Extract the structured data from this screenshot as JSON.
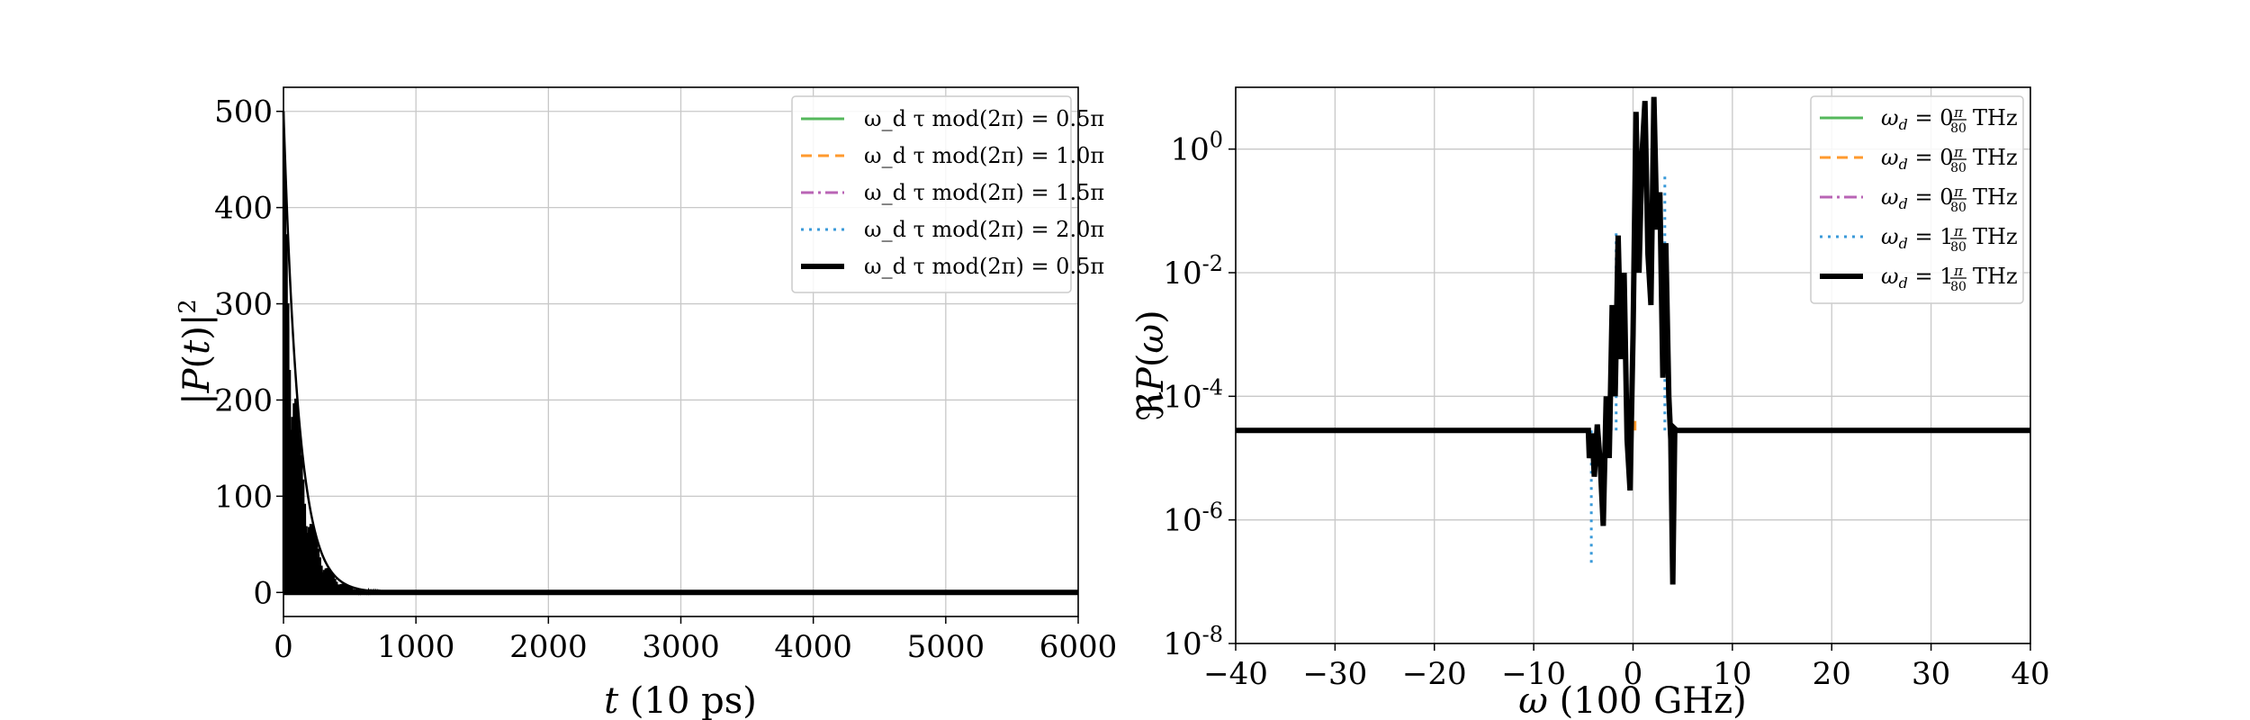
{
  "chart_data": [
    {
      "type": "line",
      "xlabel": "t (10 ps)",
      "ylabel": "|P(t)|²",
      "xlim": [
        0,
        6000
      ],
      "ylim": [
        -25,
        525
      ],
      "xticks": [
        "0",
        "1000",
        "2000",
        "3000",
        "4000",
        "5000",
        "6000"
      ],
      "xtick_values": [
        0,
        1000,
        2000,
        3000,
        4000,
        5000,
        6000
      ],
      "yticks": [
        "0",
        "100",
        "200",
        "300",
        "400",
        "500"
      ],
      "ytick_values": [
        0,
        100,
        200,
        300,
        400,
        500
      ],
      "grid": true,
      "legend_position": "top-right",
      "envelope": {
        "peak": 500,
        "decay_constant": 115,
        "oscillating": true,
        "x_end": 1100
      },
      "series": [
        {
          "name": "ω_d τ mod(2π) = 0.5π",
          "color": "#55b85c",
          "style": "solid",
          "width": 3
        },
        {
          "name": "ω_d τ mod(2π) = 1.0π",
          "color": "#ff9a2e",
          "style": "dashed",
          "width": 3
        },
        {
          "name": "ω_d τ mod(2π) = 1.5π",
          "color": "#b964b5",
          "style": "dashdot",
          "width": 3
        },
        {
          "name": "ω_d τ mod(2π) = 2.0π",
          "color": "#3a9ad9",
          "style": "dotted",
          "width": 3
        },
        {
          "name": "ω_d τ mod(2π) = 0.5π",
          "color": "#000000",
          "style": "solid",
          "width": 6
        }
      ]
    },
    {
      "type": "line",
      "xlabel": "ω (100 GHz)",
      "ylabel": "ℜP(ω)",
      "yscale": "log",
      "xlim": [
        -40,
        40
      ],
      "ylim_exponent": [
        -8,
        1.0
      ],
      "xticks": [
        "−40",
        "−30",
        "−20",
        "−10",
        "0",
        "10",
        "20",
        "30",
        "40"
      ],
      "xtick_values": [
        -40,
        -30,
        -20,
        -10,
        0,
        10,
        20,
        30,
        40
      ],
      "yticks": [
        {
          "base": "10",
          "exp": "0",
          "value": 0
        },
        {
          "base": "10",
          "exp": "-2",
          "value": -2
        },
        {
          "base": "10",
          "exp": "-4",
          "value": -4
        },
        {
          "base": "10",
          "exp": "-6",
          "value": -6
        },
        {
          "base": "10",
          "exp": "-8",
          "value": -8
        }
      ],
      "grid": true,
      "legend_position": "top-right",
      "baseline": 2.8e-05,
      "spectrum_black": [
        [
          -40,
          2.8e-05
        ],
        [
          -4.5,
          2.8e-05
        ],
        [
          -4.4,
          1e-05
        ],
        [
          -4.1,
          2.5e-05
        ],
        [
          -3.9,
          5e-06
        ],
        [
          -3.6,
          3.5e-05
        ],
        [
          -3.3,
          8e-06
        ],
        [
          -3.0,
          8e-07
        ],
        [
          -2.7,
          0.0001
        ],
        [
          -2.4,
          1e-05
        ],
        [
          -2.1,
          0.003
        ],
        [
          -1.8,
          0.0001
        ],
        [
          -1.5,
          0.04
        ],
        [
          -1.2,
          0.0004
        ],
        [
          -0.9,
          0.01
        ],
        [
          -0.6,
          2e-05
        ],
        [
          -0.3,
          3e-06
        ],
        [
          0,
          0.001
        ],
        [
          0.3,
          4.0
        ],
        [
          0.6,
          0.01
        ],
        [
          0.9,
          0.8
        ],
        [
          1.2,
          6.0
        ],
        [
          1.5,
          0.02
        ],
        [
          1.8,
          0.003
        ],
        [
          2.1,
          7.0
        ],
        [
          2.4,
          0.05
        ],
        [
          2.7,
          0.2
        ],
        [
          3.0,
          0.0002
        ],
        [
          3.3,
          0.03
        ],
        [
          3.6,
          0.0001
        ],
        [
          3.8,
          2e-05
        ],
        [
          4.0,
          9e-08
        ],
        [
          4.2,
          3e-05
        ],
        [
          4.4,
          2.8e-05
        ],
        [
          40,
          2.8e-05
        ]
      ],
      "spectrum_colored_tips": [
        {
          "series": 3,
          "x": -4.2,
          "y": 2e-07
        },
        {
          "series": 3,
          "x": 3.2,
          "y": 0.4
        },
        {
          "series": 0,
          "x": 3.8,
          "y": 6e-06
        },
        {
          "series": 1,
          "x": 4.0,
          "y": 3e-06
        },
        {
          "series": 1,
          "x": 0.2,
          "y": 4e-05
        },
        {
          "series": 3,
          "x": -1.7,
          "y": 0.05
        },
        {
          "series": 2,
          "x": -2.2,
          "y": 0.0002
        }
      ],
      "series": [
        {
          "name_prefix": "ω",
          "name_sub": "d",
          "name_eq": " = 0",
          "name_num": "π",
          "name_den": "80",
          "name_unit": "THz",
          "color": "#55b85c",
          "style": "solid",
          "width": 3
        },
        {
          "name_prefix": "ω",
          "name_sub": "d",
          "name_eq": " = 0",
          "name_num": "π",
          "name_den": "80",
          "name_unit": "THz",
          "color": "#ff9a2e",
          "style": "dashed",
          "width": 3
        },
        {
          "name_prefix": "ω",
          "name_sub": "d",
          "name_eq": " = 0",
          "name_num": "π",
          "name_den": "80",
          "name_unit": "THz",
          "color": "#b964b5",
          "style": "dashdot",
          "width": 3
        },
        {
          "name_prefix": "ω",
          "name_sub": "d",
          "name_eq": " = 1",
          "name_num": "π",
          "name_den": "80",
          "name_unit": "THz",
          "color": "#3a9ad9",
          "style": "dotted",
          "width": 3
        },
        {
          "name_prefix": "ω",
          "name_sub": "d",
          "name_eq": " = 1",
          "name_num": "π",
          "name_den": "80",
          "name_unit": "THz",
          "color": "#000000",
          "style": "solid",
          "width": 6
        }
      ]
    }
  ]
}
